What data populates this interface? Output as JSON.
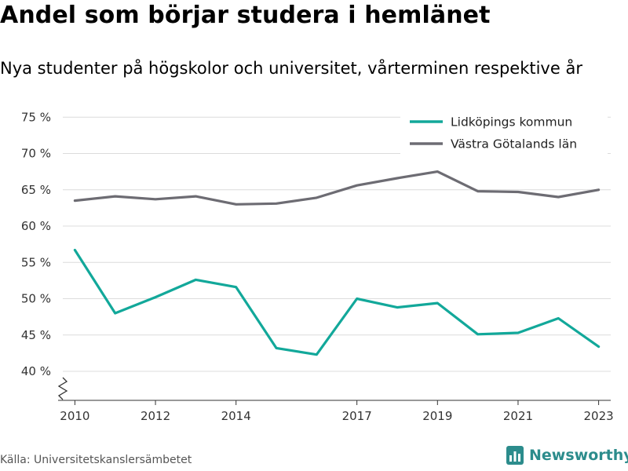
{
  "header": {
    "title": "Andel som börjar studera i hemlänet",
    "subtitle": "Nya studenter på högskolor och universitet, vårterminen respektive år"
  },
  "footer": {
    "source": "Källa: Universitetskanslersämbetet",
    "brand": "Newsworthy",
    "brand_color": "#2c8c8c"
  },
  "chart_data": {
    "type": "line",
    "title": "Andel som börjar studera i hemlänet",
    "subtitle": "Nya studenter på högskolor och universitet, vårterminen respektive år",
    "xlabel": "",
    "ylabel": "",
    "x": [
      2010,
      2011,
      2012,
      2013,
      2014,
      2015,
      2016,
      2017,
      2018,
      2019,
      2020,
      2021,
      2022,
      2023
    ],
    "xticks": [
      2010,
      2012,
      2014,
      2017,
      2019,
      2021,
      2023
    ],
    "yticks": [
      40,
      45,
      50,
      55,
      60,
      65,
      70,
      75
    ],
    "ytick_labels": [
      "40 %",
      "45 %",
      "50 %",
      "55 %",
      "60 %",
      "65 %",
      "70 %",
      "75 %"
    ],
    "ylim": [
      36,
      76
    ],
    "xlim": [
      2009.7,
      2023.3
    ],
    "axis_break": true,
    "grid": "horizontal",
    "legend_position": "top-right",
    "series": [
      {
        "name": "Lidköpings kommun",
        "color": "#12a89a",
        "values": [
          56.7,
          48.0,
          50.2,
          52.6,
          51.6,
          43.2,
          42.3,
          50.0,
          48.8,
          49.4,
          45.1,
          45.3,
          47.3,
          43.4
        ]
      },
      {
        "name": "Västra Götalands län",
        "color": "#6d6c73",
        "values": [
          63.5,
          64.1,
          63.7,
          64.1,
          63.0,
          63.1,
          63.9,
          65.6,
          66.6,
          67.5,
          64.8,
          64.7,
          64.0,
          65.0
        ]
      }
    ]
  }
}
